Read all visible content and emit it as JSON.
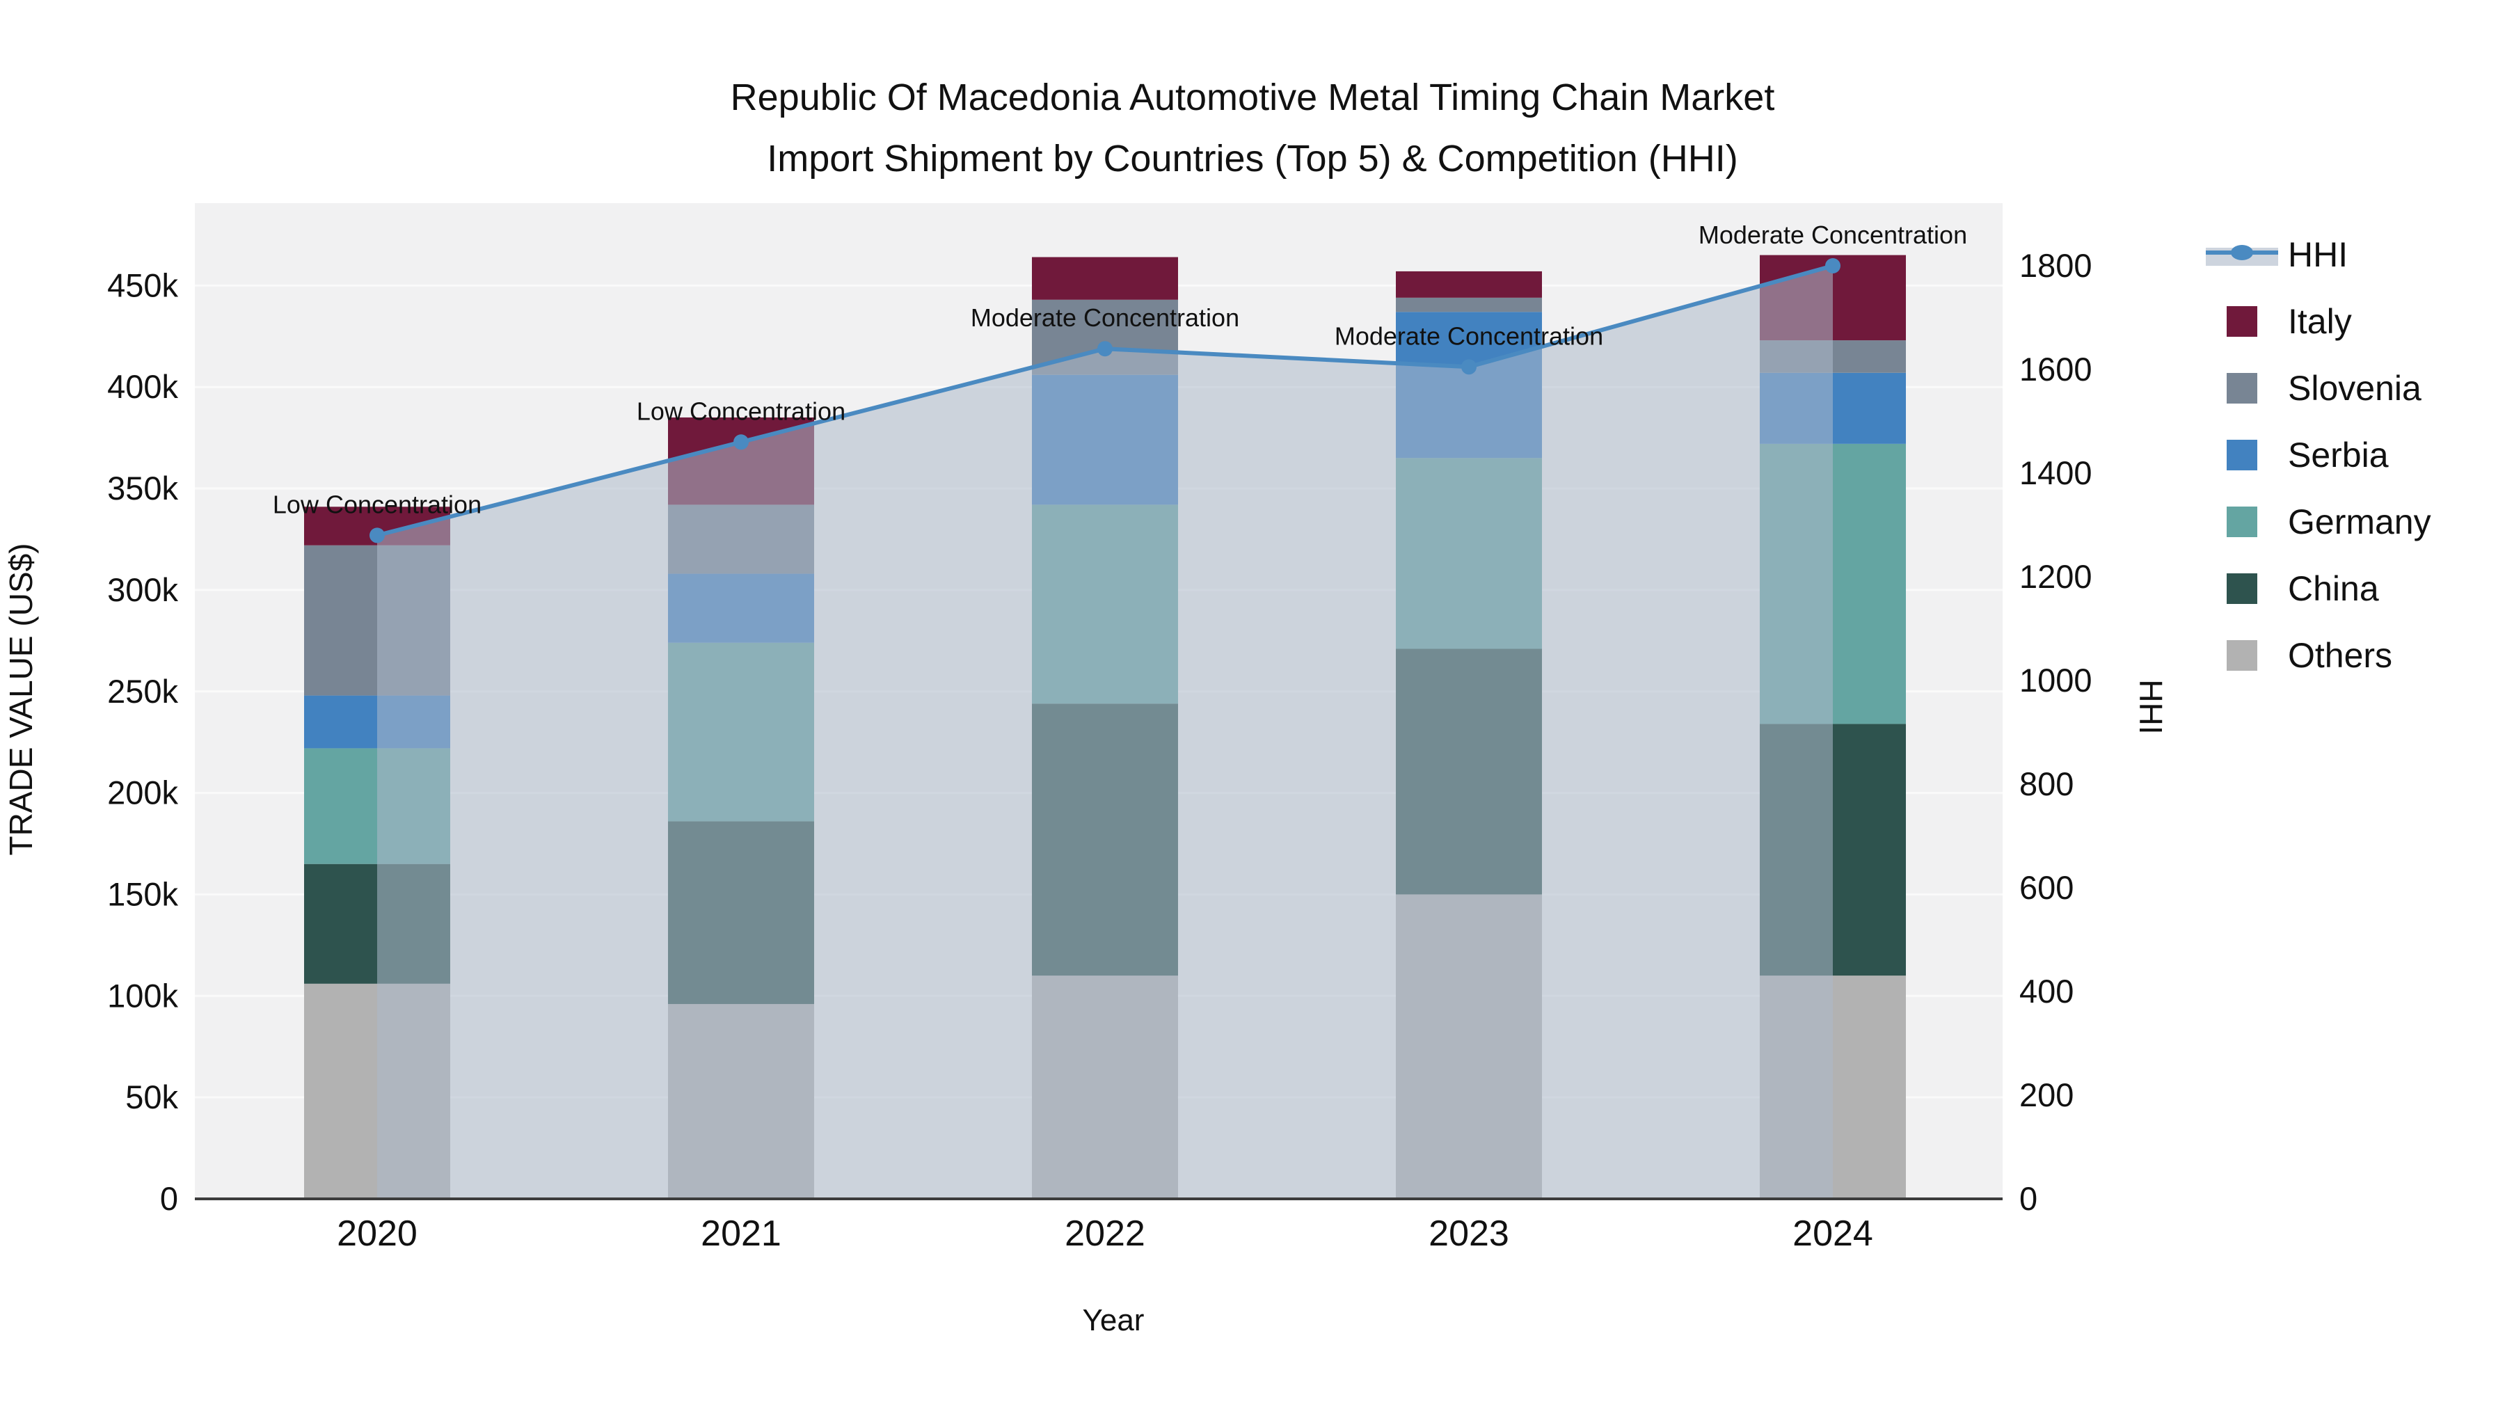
{
  "chart_data": {
    "type": "bar",
    "subtype": "stacked-bar-with-line",
    "title_line1": "Republic Of Macedonia Automotive Metal Timing Chain Market",
    "title_line2": "Import Shipment by Countries (Top 5) & Competition (HHI)",
    "xlabel": "Year",
    "ylabel_left": "TRADE VALUE (US$)",
    "ylabel_right": "HHI",
    "categories": [
      "2020",
      "2021",
      "2022",
      "2023",
      "2024"
    ],
    "stack_order_bottom_to_top": [
      "Others",
      "China",
      "Germany",
      "Serbia",
      "Slovenia",
      "Italy"
    ],
    "series": [
      {
        "name": "Italy",
        "values": [
          19000,
          43000,
          21000,
          13000,
          42000
        ],
        "color": "#70193B"
      },
      {
        "name": "Slovenia",
        "values": [
          74000,
          34000,
          37000,
          7000,
          16000
        ],
        "color": "#788594"
      },
      {
        "name": "Serbia",
        "values": [
          26000,
          34000,
          64000,
          72000,
          35000
        ],
        "color": "#4282C0"
      },
      {
        "name": "Germany",
        "values": [
          57000,
          88000,
          98000,
          94000,
          138000
        ],
        "color": "#64A5A2"
      },
      {
        "name": "China",
        "values": [
          59000,
          90000,
          134000,
          121000,
          124000
        ],
        "color": "#2E534E"
      },
      {
        "name": "Others",
        "values": [
          106000,
          96000,
          110000,
          150000,
          110000
        ],
        "color": "#B2B2B2"
      }
    ],
    "bar_totals": [
      341000,
      385000,
      464000,
      457000,
      465000
    ],
    "hhi_series": {
      "name": "HHI",
      "values": [
        1280,
        1460,
        1640,
        1605,
        1800
      ],
      "color": "#4A8AC1"
    },
    "annotations": [
      "Low Concentration",
      "Low Concentration",
      "Moderate Concentration",
      "Moderate Concentration",
      "Moderate Concentration"
    ],
    "left_axis": {
      "ticks": [
        "0",
        "50k",
        "100k",
        "150k",
        "200k",
        "250k",
        "300k",
        "350k",
        "400k",
        "450k"
      ],
      "tick_values": [
        0,
        50000,
        100000,
        150000,
        200000,
        250000,
        300000,
        350000,
        400000,
        450000
      ]
    },
    "right_axis": {
      "ticks": [
        "0",
        "200",
        "400",
        "600",
        "800",
        "1000",
        "1200",
        "1400",
        "1600",
        "1800"
      ],
      "tick_values": [
        0,
        200,
        400,
        600,
        800,
        1000,
        1200,
        1400,
        1600,
        1800
      ]
    },
    "legend_position": "right",
    "grid": true,
    "colors": {
      "plot_bg": "#F1F1F2",
      "grid_line": "#FAFAFA",
      "axis_line": "#3C3C3C",
      "hhi_line": "#4A8AC1",
      "area_fill": "rgba(173,185,202,0.55)",
      "legend_band": "#CDD4DE",
      "text": "#111111"
    }
  },
  "legend": {
    "items": [
      {
        "label": "HHI"
      },
      {
        "label": "Italy"
      },
      {
        "label": "Slovenia"
      },
      {
        "label": "Serbia"
      },
      {
        "label": "Germany"
      },
      {
        "label": "China"
      },
      {
        "label": "Others"
      }
    ]
  }
}
